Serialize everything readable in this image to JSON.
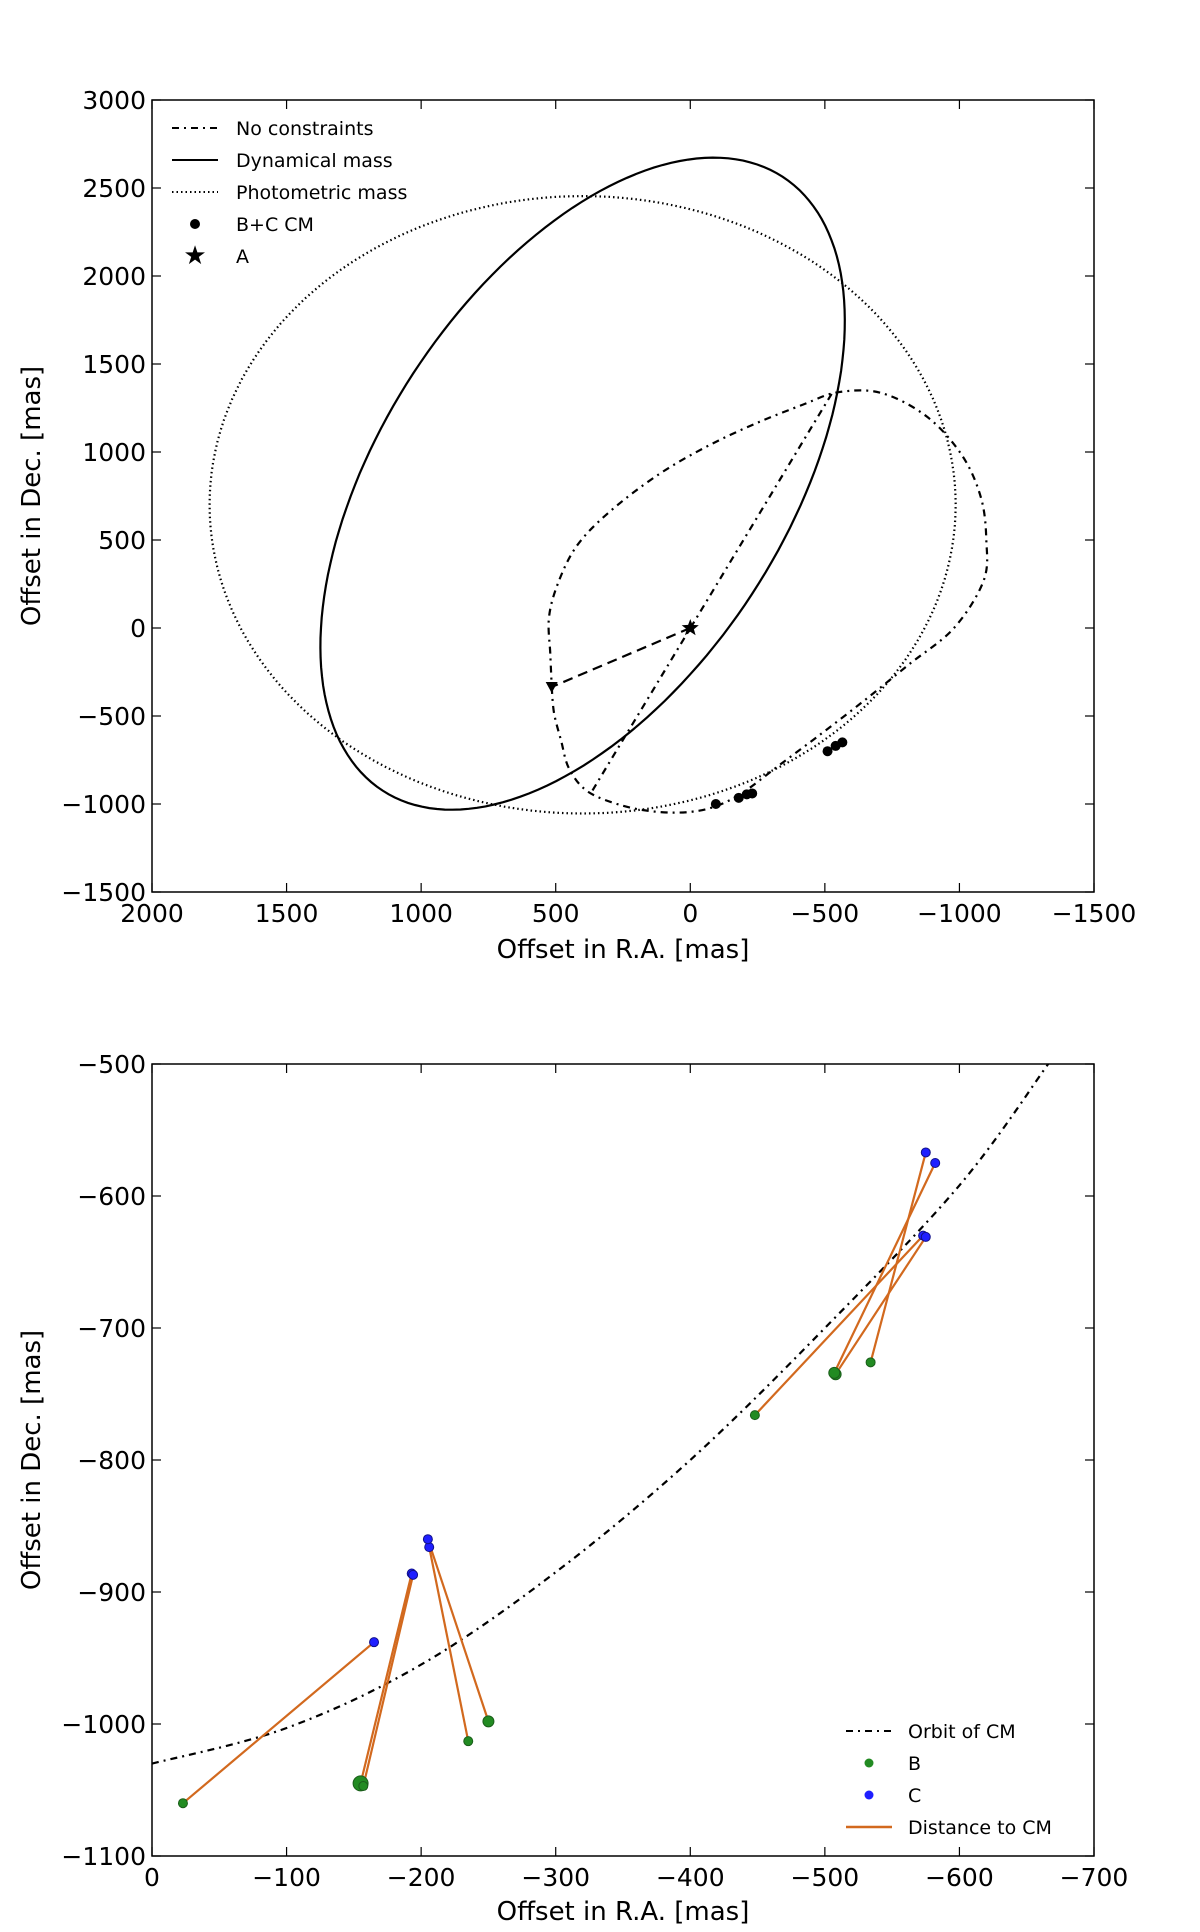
{
  "chart_data": [
    {
      "type": "line",
      "panel": "top",
      "title": "",
      "xlabel": "Offset in R.A. [mas]",
      "ylabel": "Offset in Dec. [mas]",
      "xlim": [
        2000,
        -1500
      ],
      "ylim": [
        -1500,
        3000
      ],
      "xticks": [
        2000,
        1500,
        1000,
        500,
        0,
        -500,
        -1000,
        -1500
      ],
      "yticks": [
        -1500,
        -1000,
        -500,
        0,
        500,
        1000,
        1500,
        2000,
        2500,
        3000
      ],
      "xtick_labels": [
        "2000",
        "1500",
        "1000",
        "500",
        "0",
        "−500",
        "−1000",
        "−1500"
      ],
      "ytick_labels": [
        "−1500",
        "−1000",
        "−500",
        "0",
        "500",
        "1000",
        "1500",
        "2000",
        "2500",
        "3000"
      ],
      "legend": {
        "placement": "top-left",
        "entries": [
          {
            "label": "No constraints",
            "style": "dash-dot"
          },
          {
            "label": "Dynamical mass",
            "style": "solid"
          },
          {
            "label": "Photometric mass",
            "style": "dotted"
          },
          {
            "label": "B+C CM",
            "style": "circle-marker"
          },
          {
            "label": "A",
            "style": "star-marker"
          }
        ]
      },
      "series": [
        {
          "name": "No constraints",
          "style": "dash-dot",
          "points": [
            [
              515,
              -335
            ],
            [
              506,
              -485
            ],
            [
              480,
              -640
            ],
            [
              450,
              -800
            ],
            [
              380,
              -930
            ],
            [
              250,
              -1010
            ],
            [
              120,
              -1045
            ],
            [
              0,
              -1045
            ],
            [
              -100,
              -1010
            ],
            [
              -200,
              -930
            ],
            [
              -330,
              -780
            ],
            [
              -470,
              -620
            ],
            [
              -640,
              -420
            ],
            [
              -810,
              -210
            ],
            [
              -980,
              0
            ],
            [
              -1090,
              270
            ],
            [
              -1100,
              500
            ],
            [
              -1080,
              740
            ],
            [
              -1010,
              980
            ],
            [
              -880,
              1200
            ],
            [
              -710,
              1335
            ],
            [
              -550,
              1340
            ],
            [
              -420,
              1270
            ],
            [
              -240,
              1160
            ],
            [
              -60,
              1030
            ],
            [
              120,
              870
            ],
            [
              300,
              660
            ],
            [
              420,
              470
            ],
            [
              490,
              260
            ],
            [
              525,
              60
            ],
            [
              520,
              -150
            ],
            [
              515,
              -335
            ]
          ]
        },
        {
          "name": "Dynamical mass",
          "style": "solid",
          "center": [
            400,
            820
          ],
          "radii": [
            810,
            1930
          ],
          "rotation_deg": 18
        },
        {
          "name": "Photometric mass",
          "style": "dotted",
          "center": [
            400,
            700
          ],
          "radii": [
            1386,
            1754
          ],
          "rotation_deg": 0
        },
        {
          "name": "Periastron line (No constraints)",
          "style": "dash-dot",
          "points": [
            [
              -525,
              1330
            ],
            [
              370,
              -940
            ]
          ]
        },
        {
          "name": "A to B+C CM",
          "style": "dashed",
          "points": [
            [
              0,
              0
            ],
            [
              515,
              -335
            ]
          ]
        }
      ],
      "markers": {
        "B+C CM": [
          [
            -95,
            -1000
          ],
          [
            -180,
            -965
          ],
          [
            -210,
            -945
          ],
          [
            -230,
            -940
          ],
          [
            -510,
            -700
          ],
          [
            -540,
            -670
          ],
          [
            -565,
            -650
          ]
        ],
        "A": [
          [
            0,
            0
          ]
        ],
        "end_triangle": [
          [
            515,
            -335
          ]
        ]
      }
    },
    {
      "type": "scatter",
      "panel": "bottom",
      "title": "",
      "xlabel": "Offset in R.A. [mas]",
      "ylabel": "Offset in Dec. [mas]",
      "xlim": [
        0,
        -700
      ],
      "ylim": [
        -1100,
        -500
      ],
      "xticks": [
        0,
        -100,
        -200,
        -300,
        -400,
        -500,
        -600,
        -700
      ],
      "yticks": [
        -1100,
        -1000,
        -900,
        -800,
        -700,
        -600,
        -500
      ],
      "xtick_labels": [
        "0",
        "−100",
        "−200",
        "−300",
        "−400",
        "−500",
        "−600",
        "−700"
      ],
      "ytick_labels": [
        "−1100",
        "−1000",
        "−900",
        "−800",
        "−700",
        "−600",
        "−500"
      ],
      "legend": {
        "placement": "bottom-right",
        "entries": [
          {
            "label": "Orbit of CM",
            "style": "dash-dot"
          },
          {
            "label": "B",
            "style": "green-dot"
          },
          {
            "label": "C",
            "style": "blue-dot"
          },
          {
            "label": "Distance to CM",
            "style": "orange-line"
          }
        ]
      },
      "series": [
        {
          "name": "Orbit of CM",
          "style": "dash-dot",
          "points": [
            [
              0,
              -1030
            ],
            [
              -100,
              -1003
            ],
            [
              -200,
              -955
            ],
            [
              -300,
              -885
            ],
            [
              -400,
              -800
            ],
            [
              -500,
              -700
            ],
            [
              -600,
              -592
            ],
            [
              -666,
              -500
            ]
          ]
        }
      ],
      "pairs": [
        {
          "B": [
            -23,
            -1060
          ],
          "C": [
            -165,
            -938
          ],
          "B_size": 3
        },
        {
          "B": [
            -155,
            -1045
          ],
          "C": [
            -193,
            -886
          ],
          "B_size": 6
        },
        {
          "B": [
            -157,
            -1047
          ],
          "C": [
            -194,
            -887
          ],
          "B_size": 3
        },
        {
          "B": [
            -235,
            -1013
          ],
          "C": [
            -206,
            -866
          ],
          "B_size": 3
        },
        {
          "B": [
            -250,
            -998
          ],
          "C": [
            -205,
            -860
          ],
          "B_size": 4
        },
        {
          "B": [
            -448,
            -766
          ],
          "C": [
            -573,
            -630
          ],
          "B_size": 3
        },
        {
          "B": [
            -508,
            -735
          ],
          "C": [
            -575,
            -631
          ],
          "B_size": 4
        },
        {
          "B": [
            -534,
            -726
          ],
          "C": [
            -575,
            -567
          ],
          "B_size": 3
        },
        {
          "B": [
            -507,
            -734
          ],
          "C": [
            -582,
            -575
          ],
          "B_size": 4
        }
      ],
      "colors": {
        "B": "#228b22",
        "C": "#1f1fff",
        "distance": "#d2691e",
        "orbit": "#000000"
      }
    }
  ]
}
